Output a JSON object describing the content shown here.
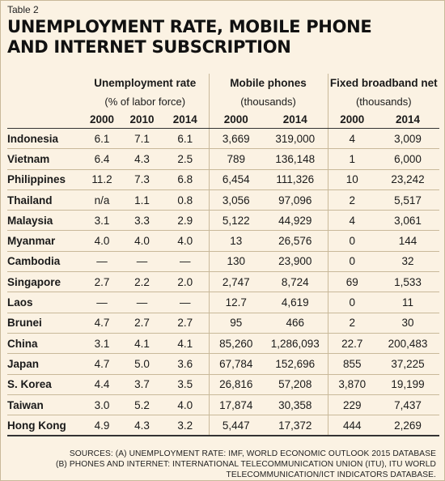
{
  "table_label": "Table 2",
  "title_lines": [
    "UNEMPLOYMENT RATE, MOBILE PHONE",
    "AND INTERNET SUBSCRIPTION"
  ],
  "groups": [
    {
      "name": "Unemployment rate",
      "unit": "(% of labor force)",
      "years": [
        "2000",
        "2010",
        "2014"
      ]
    },
    {
      "name": "Mobile phones",
      "unit": "(thousands)",
      "years": [
        "2000",
        "2014"
      ]
    },
    {
      "name": "Fixed broadband net",
      "unit": "(thousands)",
      "years": [
        "2000",
        "2014"
      ]
    }
  ],
  "rows": [
    {
      "country": "Indonesia",
      "unemp": [
        "6.1",
        "7.1",
        "6.1"
      ],
      "mobile": [
        "3,669",
        "319,000"
      ],
      "broadband": [
        "4",
        "3,009"
      ]
    },
    {
      "country": "Vietnam",
      "unemp": [
        "6.4",
        "4.3",
        "2.5"
      ],
      "mobile": [
        "789",
        "136,148"
      ],
      "broadband": [
        "1",
        "6,000"
      ]
    },
    {
      "country": "Philippines",
      "unemp": [
        "11.2",
        "7.3",
        "6.8"
      ],
      "mobile": [
        "6,454",
        "111,326"
      ],
      "broadband": [
        "10",
        "23,242"
      ]
    },
    {
      "country": "Thailand",
      "unemp": [
        "n/a",
        "1.1",
        "0.8"
      ],
      "mobile": [
        "3,056",
        "97,096"
      ],
      "broadband": [
        "2",
        "5,517"
      ]
    },
    {
      "country": "Malaysia",
      "unemp": [
        "3.1",
        "3.3",
        "2.9"
      ],
      "mobile": [
        "5,122",
        "44,929"
      ],
      "broadband": [
        "4",
        "3,061"
      ]
    },
    {
      "country": "Myanmar",
      "unemp": [
        "4.0",
        "4.0",
        "4.0"
      ],
      "mobile": [
        "13",
        "26,576"
      ],
      "broadband": [
        "0",
        "144"
      ]
    },
    {
      "country": "Cambodia",
      "unemp": [
        "—",
        "—",
        "—"
      ],
      "mobile": [
        "130",
        "23,900"
      ],
      "broadband": [
        "0",
        "32"
      ]
    },
    {
      "country": "Singapore",
      "unemp": [
        "2.7",
        "2.2",
        "2.0"
      ],
      "mobile": [
        "2,747",
        "8,724"
      ],
      "broadband": [
        "69",
        "1,533"
      ]
    },
    {
      "country": "Laos",
      "unemp": [
        "—",
        "—",
        "—"
      ],
      "mobile": [
        "12.7",
        "4,619"
      ],
      "broadband": [
        "0",
        "11"
      ]
    },
    {
      "country": "Brunei",
      "unemp": [
        "4.7",
        "2.7",
        "2.7"
      ],
      "mobile": [
        "95",
        "466"
      ],
      "broadband": [
        "2",
        "30"
      ]
    },
    {
      "country": "China",
      "unemp": [
        "3.1",
        "4.1",
        "4.1"
      ],
      "mobile": [
        "85,260",
        "1,286,093"
      ],
      "broadband": [
        "22.7",
        "200,483"
      ]
    },
    {
      "country": "Japan",
      "unemp": [
        "4.7",
        "5.0",
        "3.6"
      ],
      "mobile": [
        "67,784",
        "152,696"
      ],
      "broadband": [
        "855",
        "37,225"
      ]
    },
    {
      "country": "S. Korea",
      "unemp": [
        "4.4",
        "3.7",
        "3.5"
      ],
      "mobile": [
        "26,816",
        "57,208"
      ],
      "broadband": [
        "3,870",
        "19,199"
      ]
    },
    {
      "country": "Taiwan",
      "unemp": [
        "3.0",
        "5.2",
        "4.0"
      ],
      "mobile": [
        "17,874",
        "30,358"
      ],
      "broadband": [
        "229",
        "7,437"
      ]
    },
    {
      "country": "Hong Kong",
      "unemp": [
        "4.9",
        "4.3",
        "3.2"
      ],
      "mobile": [
        "5,447",
        "17,372"
      ],
      "broadband": [
        "444",
        "2,269"
      ]
    }
  ],
  "sources": [
    "SOURCES: (A) UNEMPLOYMENT RATE: IMF, WORLD ECONOMIC OUTLOOK 2015 DATABASE",
    "(B) PHONES AND INTERNET: INTERNATIONAL TELECOMMUNICATION UNION (ITU), ITU WORLD",
    "TELECOMMUNICATION/ICT INDICATORS DATABASE."
  ]
}
